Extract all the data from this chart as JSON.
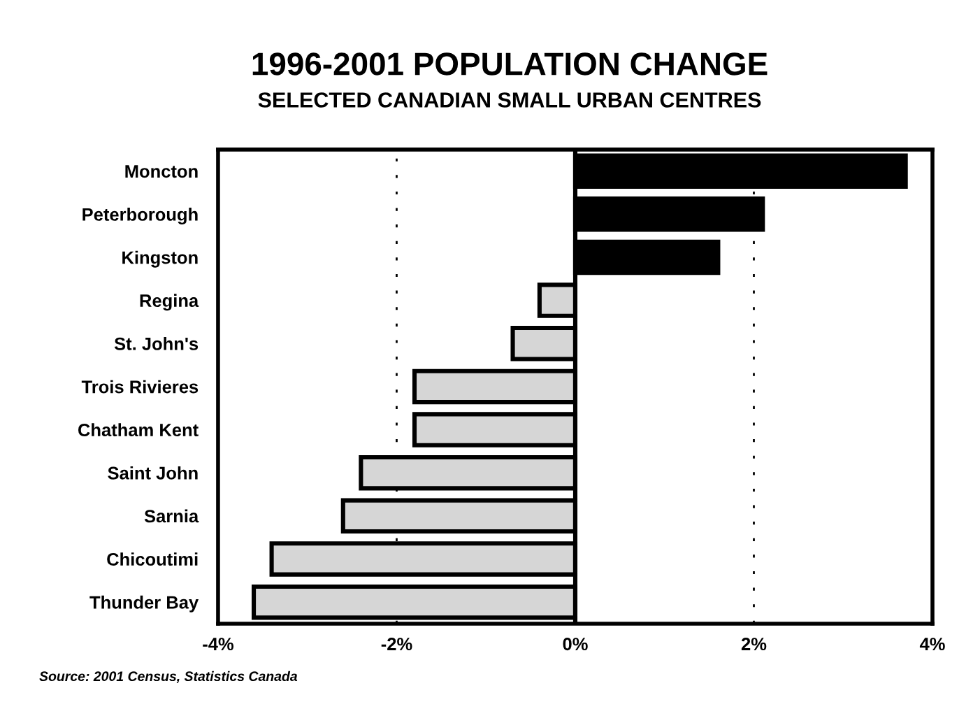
{
  "chart_data": {
    "type": "bar",
    "orientation": "horizontal",
    "title": "1996-2001 POPULATION CHANGE",
    "subtitle": "SELECTED CANADIAN SMALL URBAN CENTRES",
    "categories": [
      "Moncton",
      "Peterborough",
      "Kingston",
      "Regina",
      "St. John's",
      "Trois Rivieres",
      "Chatham Kent",
      "Saint John",
      "Sarnia",
      "Chicoutimi",
      "Thunder Bay"
    ],
    "values": [
      3.7,
      2.1,
      1.6,
      -0.4,
      -0.7,
      -1.8,
      -1.8,
      -2.4,
      -2.6,
      -3.4,
      -3.6
    ],
    "colors": [
      "#000000",
      "#000000",
      "#000000",
      "#d6d6d6",
      "#d6d6d6",
      "#d6d6d6",
      "#d6d6d6",
      "#d6d6d6",
      "#d6d6d6",
      "#d6d6d6",
      "#d6d6d6"
    ],
    "xlim": [
      -4,
      4
    ],
    "xticks": [
      {
        "value": -4,
        "label": "-4%"
      },
      {
        "value": -2,
        "label": "-2%"
      },
      {
        "value": 0,
        "label": "0%"
      },
      {
        "value": 2,
        "label": "2%"
      },
      {
        "value": 4,
        "label": "4%"
      }
    ],
    "ref_lines": [
      {
        "axis": "x",
        "value": 0,
        "color": "#000000",
        "line_style": "solid"
      }
    ],
    "grid": "x",
    "annotations": [
      "Source: 2001 Census, Statistics Canada"
    ]
  }
}
